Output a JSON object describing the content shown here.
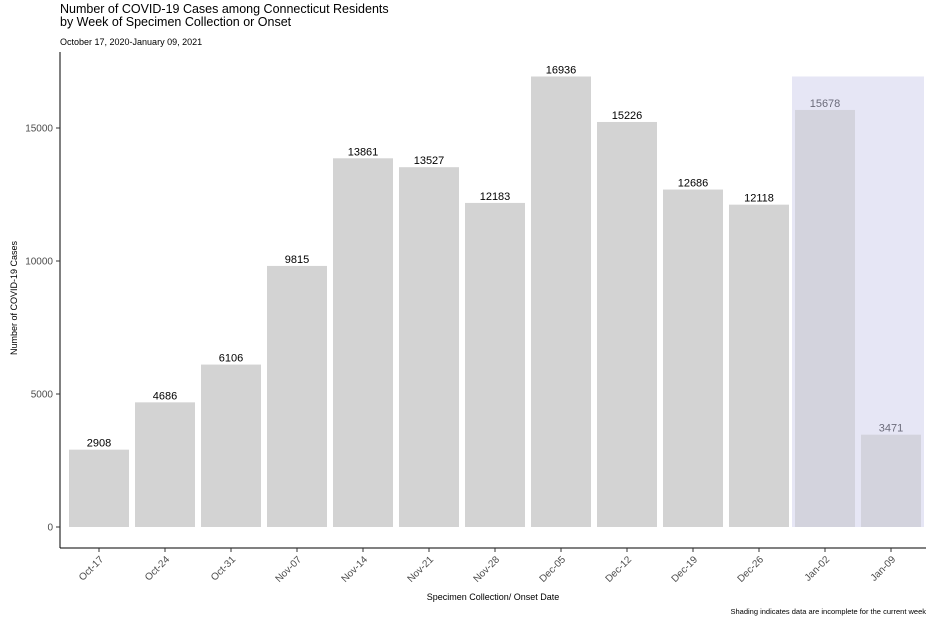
{
  "chart_data": {
    "type": "bar",
    "title_line1": "Number of COVID-19 Cases among Connecticut Residents",
    "title_line2": "by Week of Specimen Collection or Onset",
    "subtitle": "October 17, 2020-January 09, 2021",
    "xlabel": "Specimen Collection/ Onset Date",
    "ylabel": "Number of COVID-19 Cases",
    "caption": "Shading indicates data are incomplete for the current week",
    "categories": [
      "Oct-17",
      "Oct-24",
      "Oct-31",
      "Nov-07",
      "Nov-14",
      "Nov-21",
      "Nov-28",
      "Dec-05",
      "Dec-12",
      "Dec-19",
      "Dec-26",
      "Jan-02",
      "Jan-09"
    ],
    "values": [
      2908,
      4686,
      6106,
      9815,
      13861,
      13527,
      12183,
      16936,
      15226,
      12686,
      12118,
      15678,
      3471
    ],
    "incomplete_categories": [
      "Jan-02",
      "Jan-09"
    ],
    "ylim": [
      0,
      17000
    ],
    "yticks": [
      0,
      5000,
      10000,
      15000
    ],
    "grid": false,
    "colors": {
      "bar": "#d3d3d3",
      "bar_incomplete": "#d3d3dd",
      "shade": "#e6e6f5",
      "label": "#000000",
      "label_incomplete": "#6b6b7a"
    }
  }
}
